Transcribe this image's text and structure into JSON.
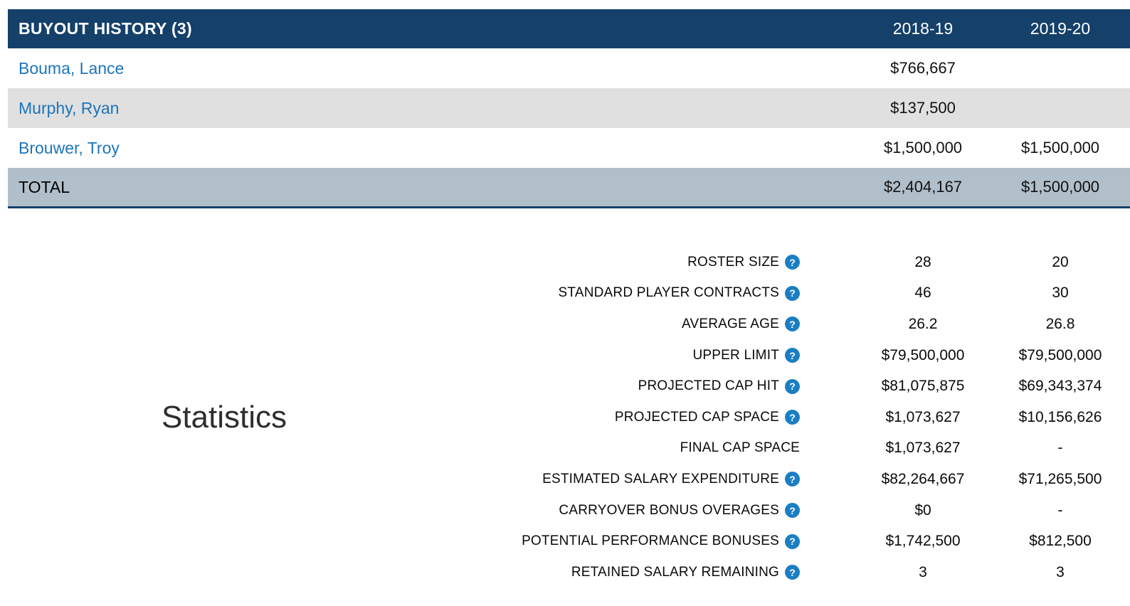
{
  "colors": {
    "header_bg": "#14406a",
    "alt_row_bg": "#e0e0e0",
    "total_row_bg": "#b0bfca",
    "link_blue": "#1c75bc",
    "help_icon_bg": "#1b7ec2"
  },
  "icons": {
    "help": "?"
  },
  "buyout_table": {
    "title": "BUYOUT HISTORY (3)",
    "season_columns": [
      "2018-19",
      "2019-20"
    ],
    "rows": [
      {
        "player": "Bouma, Lance",
        "values": [
          "$766,667",
          ""
        ]
      },
      {
        "player": "Murphy, Ryan",
        "values": [
          "$137,500",
          ""
        ]
      },
      {
        "player": "Brouwer, Troy",
        "values": [
          "$1,500,000",
          "$1,500,000"
        ]
      }
    ],
    "total": {
      "label": "TOTAL",
      "values": [
        "$2,404,167",
        "$1,500,000"
      ]
    }
  },
  "statistics": {
    "heading": "Statistics",
    "rows": [
      {
        "label": "ROSTER SIZE",
        "help": true,
        "values": [
          "28",
          "20"
        ]
      },
      {
        "label": "STANDARD PLAYER CONTRACTS",
        "help": true,
        "values": [
          "46",
          "30"
        ]
      },
      {
        "label": "AVERAGE AGE",
        "help": true,
        "values": [
          "26.2",
          "26.8"
        ]
      },
      {
        "label": "UPPER LIMIT",
        "help": true,
        "values": [
          "$79,500,000",
          "$79,500,000"
        ]
      },
      {
        "label": "PROJECTED CAP HIT",
        "help": true,
        "values": [
          "$81,075,875",
          "$69,343,374"
        ]
      },
      {
        "label": "PROJECTED CAP SPACE",
        "help": true,
        "values": [
          "$1,073,627",
          "$10,156,626"
        ]
      },
      {
        "label": "FINAL CAP SPACE",
        "help": false,
        "values": [
          "$1,073,627",
          "-"
        ]
      },
      {
        "label": "ESTIMATED SALARY EXPENDITURE",
        "help": true,
        "values": [
          "$82,264,667",
          "$71,265,500"
        ]
      },
      {
        "label": "CARRYOVER BONUS OVERAGES",
        "help": true,
        "values": [
          "$0",
          "-"
        ]
      },
      {
        "label": "POTENTIAL PERFORMANCE BONUSES",
        "help": true,
        "values": [
          "$1,742,500",
          "$812,500"
        ]
      },
      {
        "label": "RETAINED SALARY REMAINING",
        "help": true,
        "values": [
          "3",
          "3"
        ]
      }
    ]
  }
}
